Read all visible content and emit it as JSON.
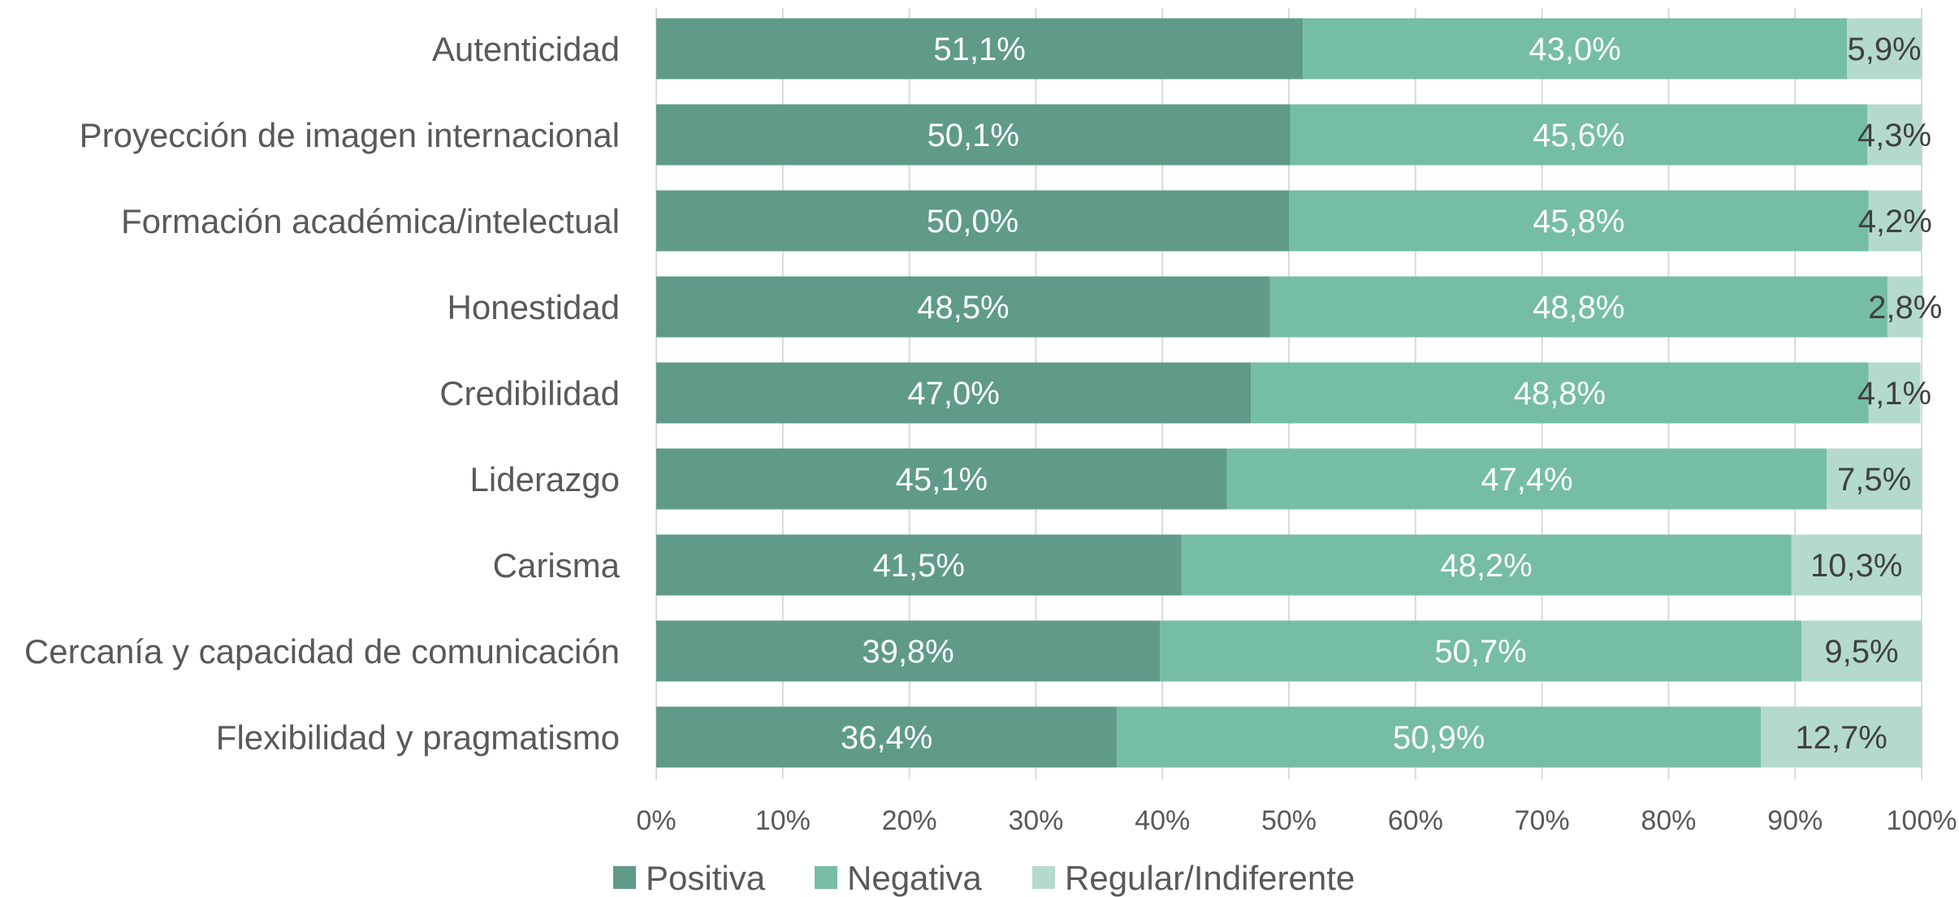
{
  "chart_data": {
    "type": "bar",
    "orientation": "horizontal",
    "stacked": "percent",
    "categories": [
      "Autenticidad",
      "Proyección de imagen internacional",
      "Formación académica/intelectual",
      "Honestidad",
      "Credibilidad",
      "Liderazgo",
      "Carisma",
      "Cercanía y capacidad de comunicación",
      "Flexibilidad y pragmatismo"
    ],
    "series": [
      {
        "name": "Positiva",
        "color": "#5f9b88",
        "values": [
          51.1,
          50.1,
          50.0,
          48.5,
          47.0,
          45.1,
          41.5,
          39.8,
          36.4
        ],
        "labels": [
          "51,1%",
          "50,1%",
          "50,0%",
          "48,5%",
          "47,0%",
          "45,1%",
          "41,5%",
          "39,8%",
          "36,4%"
        ]
      },
      {
        "name": "Negativa",
        "color": "#76bda6",
        "values": [
          43.0,
          45.6,
          45.8,
          48.8,
          48.8,
          47.4,
          48.2,
          50.7,
          50.9
        ],
        "labels": [
          "43,0%",
          "45,6%",
          "45,8%",
          "48,8%",
          "48,8%",
          "47,4%",
          "48,2%",
          "50,7%",
          "50,9%"
        ]
      },
      {
        "name": "Regular/Indiferente",
        "color": "#b4dacd",
        "values": [
          5.9,
          4.3,
          4.2,
          2.8,
          4.1,
          7.5,
          10.3,
          9.5,
          12.7
        ],
        "labels": [
          "5,9%",
          "4,3%",
          "4,2%",
          "2,8%",
          "4,1%",
          "7,5%",
          "10,3%",
          "9,5%",
          "12,7%"
        ]
      }
    ],
    "xlim": [
      0,
      100
    ],
    "x_ticks": [
      "0%",
      "10%",
      "20%",
      "30%",
      "40%",
      "50%",
      "60%",
      "70%",
      "80%",
      "90%",
      "100%"
    ],
    "grid": true,
    "legend_position": "bottom",
    "title": "",
    "xlabel": "",
    "ylabel": ""
  }
}
